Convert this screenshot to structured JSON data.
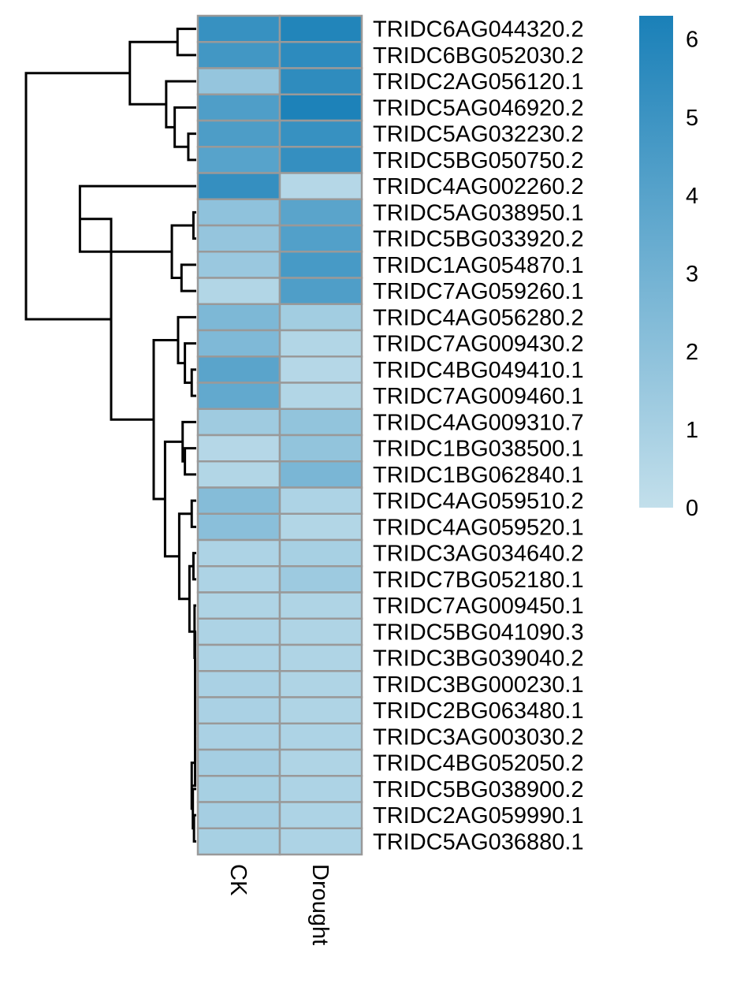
{
  "chart_data": {
    "type": "heatmap",
    "title": "",
    "columns": [
      "CK",
      "Drought"
    ],
    "rows": [
      "TRIDC6AG044320.2",
      "TRIDC6BG052030.2",
      "TRIDC2AG056120.1",
      "TRIDC5AG046920.2",
      "TRIDC5AG032230.2",
      "TRIDC5BG050750.2",
      "TRIDC4AG002260.2",
      "TRIDC5AG038950.1",
      "TRIDC5BG033920.2",
      "TRIDC1AG054870.1",
      "TRIDC7AG059260.1",
      "TRIDC4AG056280.2",
      "TRIDC7AG009430.2",
      "TRIDC4BG049410.1",
      "TRIDC7AG009460.1",
      "TRIDC4AG009310.7",
      "TRIDC1BG038500.1",
      "TRIDC1BG062840.1",
      "TRIDC4AG059510.2",
      "TRIDC4AG059520.1",
      "TRIDC3AG034640.2",
      "TRIDC7BG052180.1",
      "TRIDC7AG009450.1",
      "TRIDC5BG041090.3",
      "TRIDC3BG039040.2",
      "TRIDC3BG000230.1",
      "TRIDC2BG063480.1",
      "TRIDC3AG003030.2",
      "TRIDC4BG052050.2",
      "TRIDC5BG038900.2",
      "TRIDC2AG059990.1",
      "TRIDC5AG036880.1"
    ],
    "values": [
      [
        5.2,
        6.0
      ],
      [
        4.8,
        5.6
      ],
      [
        1.7,
        5.5
      ],
      [
        4.3,
        6.2
      ],
      [
        4.4,
        5.2
      ],
      [
        4.0,
        5.3
      ],
      [
        5.3,
        0.5
      ],
      [
        1.9,
        3.9
      ],
      [
        1.7,
        4.2
      ],
      [
        1.5,
        4.6
      ],
      [
        0.6,
        4.3
      ],
      [
        2.6,
        1.2
      ],
      [
        2.5,
        0.6
      ],
      [
        3.9,
        0.5
      ],
      [
        3.6,
        0.6
      ],
      [
        1.3,
        1.8
      ],
      [
        0.5,
        1.8
      ],
      [
        0.6,
        2.7
      ],
      [
        2.3,
        0.8
      ],
      [
        2.1,
        0.6
      ],
      [
        0.8,
        1.0
      ],
      [
        0.8,
        1.4
      ],
      [
        0.7,
        0.7
      ],
      [
        0.8,
        0.7
      ],
      [
        0.8,
        0.7
      ],
      [
        0.9,
        0.7
      ],
      [
        0.9,
        0.7
      ],
      [
        0.9,
        0.8
      ],
      [
        1.1,
        0.7
      ],
      [
        1.0,
        0.8
      ],
      [
        1.1,
        0.8
      ],
      [
        1.0,
        0.8
      ]
    ],
    "color_scale": {
      "min": 0,
      "max": 6.3,
      "low_color": "#c2dfeb",
      "high_color": "#1a80b8",
      "ticks": [
        0,
        1,
        2,
        3,
        4,
        5,
        6
      ]
    },
    "cell_border_color": "#999999",
    "legend_position": "right",
    "dendrogram_position": "left",
    "row_dendrogram": [
      [
        0,
        1,
        0.33
      ],
      [
        4,
        5,
        0.33
      ],
      [
        3,
        23,
        0.71
      ],
      [
        2,
        24,
        1.17
      ],
      [
        22,
        25,
        1.88
      ],
      [
        9,
        10,
        0.33
      ],
      [
        7,
        8,
        0.39
      ],
      [
        28,
        27,
        0.94
      ],
      [
        6,
        29,
        1.89
      ],
      [
        13,
        14,
        0.33
      ],
      [
        12,
        31,
        0.47
      ],
      [
        11,
        32,
        0.8
      ],
      [
        16,
        17,
        0.33
      ],
      [
        15,
        34,
        0.58
      ],
      [
        18,
        19,
        0.28
      ],
      [
        30,
        31,
        0.06
      ],
      [
        28,
        29,
        0.06
      ],
      [
        27,
        31,
        0.06
      ],
      [
        26,
        30,
        0.07
      ],
      [
        25,
        31,
        0.07
      ],
      [
        24,
        30,
        0.12
      ],
      [
        23,
        29,
        0.12
      ],
      [
        22,
        29,
        0.12
      ],
      [
        21,
        41,
        0.12
      ],
      [
        20,
        29,
        0.18
      ],
      [
        20,
        35,
        0.38
      ],
      [
        19,
        37,
        0.66
      ],
      [
        18,
        39,
        1.3
      ],
      [
        17,
        12,
        2.0
      ],
      [
        16,
        6,
        2.6
      ],
      [
        15,
        30,
        3.0
      ]
    ]
  }
}
